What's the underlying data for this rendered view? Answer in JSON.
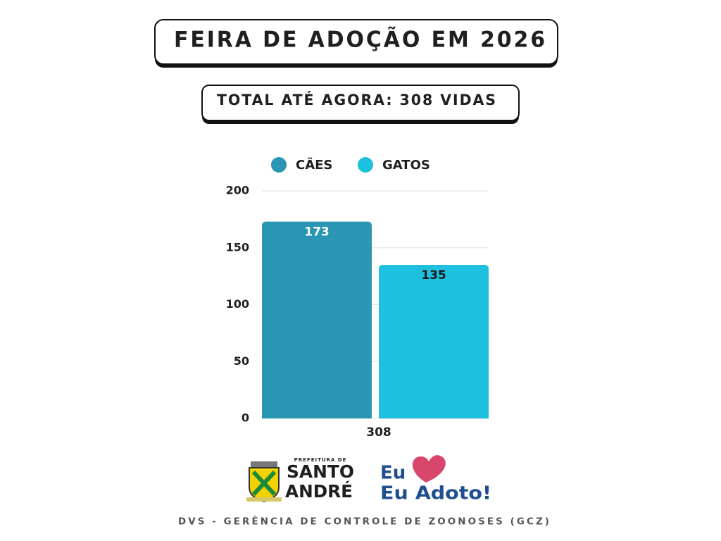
{
  "chart_data": {
    "type": "bar",
    "title": "FEIRA DE ADOÇÃO EM 2026",
    "subtitle": "TOTAL ATÉ AGORA: 308 VIDAS",
    "categories": [
      "308"
    ],
    "series": [
      {
        "name": "CÃES",
        "color": "#2b96b3",
        "values": [
          173
        ]
      },
      {
        "name": "GATOS",
        "color": "#1ec0e0",
        "values": [
          135
        ]
      }
    ],
    "ylim": [
      0,
      200
    ],
    "yticks": [
      0,
      50,
      100,
      150,
      200
    ],
    "grid": true,
    "legend": "top"
  },
  "logos": {
    "city_prefix": "PREFEITURA DE",
    "city_line1": "SANTO",
    "city_line2": "ANDRÉ",
    "campaign_line1": "Eu",
    "campaign_line2": "Eu Adoto!"
  },
  "footer": "DVS - GERÊNCIA DE CONTROLE DE ZOONOSES (GCZ)"
}
